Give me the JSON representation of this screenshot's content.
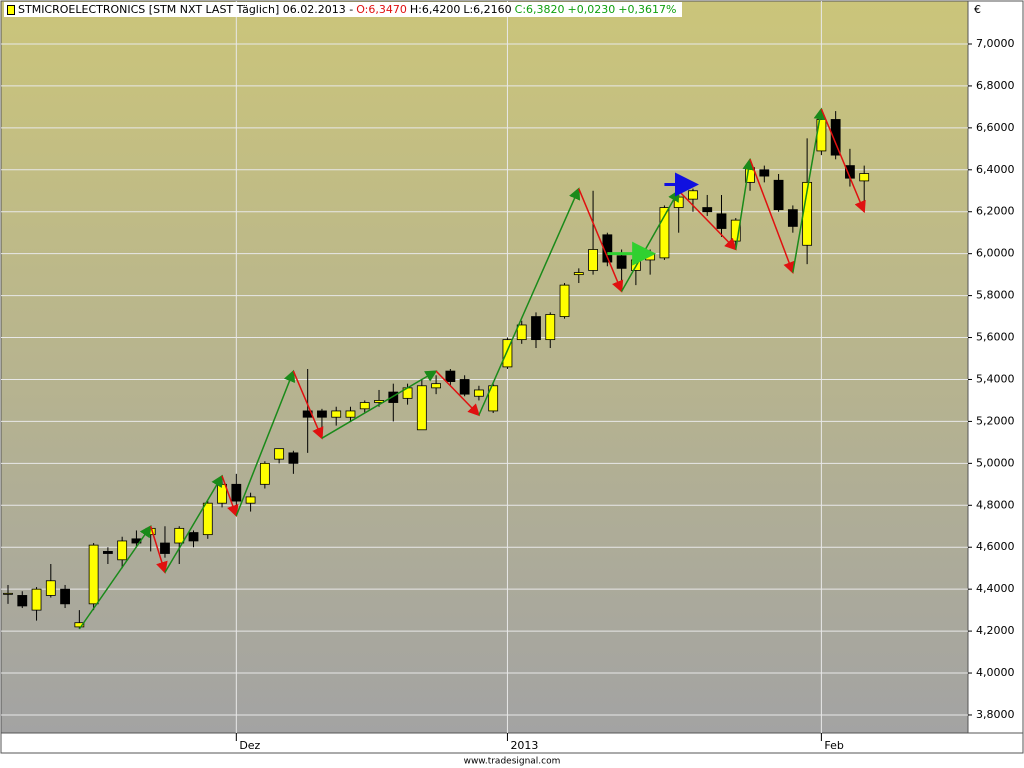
{
  "header": {
    "instrument": "STMICROELECTRONICS [STM NXT LAST Täglich] 06.02.2013 -",
    "open": "O:6,3470",
    "high": "H:6,4200",
    "low": "L:6,2160",
    "close": "C:6,3820",
    "change": "+0,0230",
    "change_pct": "+0,3617%"
  },
  "footer": "www.tradesignal.com",
  "chart_data": {
    "type": "candlestick",
    "y_label": "€",
    "categories": [
      null,
      null,
      null,
      null,
      null,
      null,
      null,
      null,
      null,
      null,
      null,
      null,
      null,
      null,
      null,
      null,
      "Dez",
      null,
      null,
      null,
      null,
      null,
      null,
      null,
      null,
      null,
      null,
      null,
      null,
      null,
      null,
      null,
      null,
      null,
      null,
      "2013",
      null,
      null,
      null,
      null,
      null,
      null,
      null,
      null,
      null,
      null,
      null,
      null,
      null,
      null,
      null,
      null,
      null,
      null,
      null,
      null,
      null,
      "Feb",
      null,
      null,
      null
    ],
    "open": [
      4.38,
      4.37,
      4.3,
      4.37,
      4.4,
      4.22,
      4.33,
      4.58,
      4.54,
      4.64,
      4.66,
      4.62,
      4.62,
      4.67,
      4.66,
      4.81,
      4.9,
      4.81,
      4.9,
      5.02,
      5.05,
      5.25,
      5.25,
      5.22,
      5.22,
      5.26,
      5.29,
      5.34,
      5.31,
      5.16,
      5.36,
      5.44,
      5.4,
      5.32,
      5.25,
      5.46,
      5.59,
      5.7,
      5.59,
      5.7,
      5.9,
      5.92,
      6.09,
      5.99,
      5.92,
      5.97,
      5.98,
      6.22,
      6.26,
      6.22,
      6.19,
      6.06,
      6.34,
      6.4,
      6.35,
      6.21,
      6.04,
      6.49,
      6.64,
      6.42,
      6.347
    ],
    "high": [
      4.42,
      4.39,
      4.41,
      4.52,
      4.42,
      4.3,
      4.62,
      4.6,
      4.65,
      4.68,
      4.7,
      4.7,
      4.7,
      4.68,
      4.82,
      4.93,
      4.95,
      4.86,
      5.01,
      5.07,
      5.06,
      5.45,
      5.26,
      5.27,
      5.27,
      5.3,
      5.35,
      5.38,
      5.38,
      5.4,
      5.42,
      5.45,
      5.42,
      5.37,
      5.38,
      5.6,
      5.68,
      5.72,
      5.72,
      5.86,
      5.93,
      6.3,
      6.1,
      6.02,
      6.0,
      6.02,
      6.23,
      6.28,
      6.31,
      6.28,
      6.28,
      6.17,
      6.45,
      6.42,
      6.38,
      6.23,
      6.55,
      6.68,
      6.68,
      6.5,
      6.42
    ],
    "low": [
      4.33,
      4.31,
      4.25,
      4.36,
      4.31,
      4.21,
      4.3,
      4.52,
      4.5,
      4.6,
      4.58,
      4.55,
      4.52,
      4.6,
      4.64,
      4.79,
      4.8,
      4.77,
      4.88,
      5.0,
      4.95,
      5.05,
      5.15,
      5.18,
      5.2,
      5.24,
      5.27,
      5.2,
      5.28,
      5.16,
      5.33,
      5.37,
      5.32,
      5.3,
      5.24,
      5.45,
      5.57,
      5.55,
      5.55,
      5.69,
      5.86,
      5.9,
      5.94,
      5.85,
      5.85,
      5.9,
      5.97,
      6.1,
      6.2,
      6.18,
      6.08,
      6.02,
      6.3,
      6.34,
      6.2,
      6.1,
      5.95,
      6.47,
      6.45,
      6.32,
      6.216
    ],
    "close": [
      4.38,
      4.32,
      4.4,
      4.44,
      4.33,
      4.24,
      4.61,
      4.57,
      4.63,
      4.62,
      4.69,
      4.57,
      4.69,
      4.63,
      4.81,
      4.9,
      4.82,
      4.84,
      5.0,
      5.07,
      5.0,
      5.22,
      5.22,
      5.25,
      5.25,
      5.29,
      5.3,
      5.29,
      5.36,
      5.37,
      5.38,
      5.39,
      5.33,
      5.35,
      5.37,
      5.59,
      5.66,
      5.59,
      5.71,
      5.85,
      5.91,
      6.02,
      5.96,
      5.93,
      5.97,
      6.0,
      6.22,
      6.27,
      6.3,
      6.2,
      6.12,
      6.16,
      6.41,
      6.37,
      6.21,
      6.13,
      6.34,
      6.64,
      6.47,
      6.36,
      6.382
    ],
    "up_color": "#ffff00",
    "down_color": "#000000",
    "zigzag": {
      "index": [
        5,
        10,
        11,
        15,
        16,
        20,
        22,
        30,
        33,
        40,
        43,
        47,
        51,
        52,
        55,
        57,
        60
      ],
      "values": [
        4.21,
        4.7,
        4.48,
        4.94,
        4.75,
        5.44,
        5.12,
        5.44,
        5.23,
        6.31,
        5.82,
        6.3,
        6.02,
        6.45,
        5.91,
        6.69,
        6.2
      ],
      "up_color": "#1a8a1a",
      "down_color": "#e01010"
    },
    "hlines": [
      {
        "from": 46,
        "to": 48,
        "value": 6.33,
        "color": "#1010e0"
      },
      {
        "from": 42,
        "to": 45,
        "value": 6.0,
        "color": "#30d030"
      }
    ],
    "ylim": [
      3.714,
      7.205
    ],
    "yticks": [
      {
        "value": 3.8,
        "label": "3,8000"
      },
      {
        "value": 4.0,
        "label": "4,0000"
      },
      {
        "value": 4.2,
        "label": "4,2000"
      },
      {
        "value": 4.4,
        "label": "4,4000"
      },
      {
        "value": 4.6,
        "label": "4,6000"
      },
      {
        "value": 4.8,
        "label": "4,8000"
      },
      {
        "value": 5.0,
        "label": "5,0000"
      },
      {
        "value": 5.2,
        "label": "5,2000"
      },
      {
        "value": 5.4,
        "label": "5,4000"
      },
      {
        "value": 5.6,
        "label": "5,6000"
      },
      {
        "value": 5.8,
        "label": "5,8000"
      },
      {
        "value": 6.0,
        "label": "6,0000"
      },
      {
        "value": 6.2,
        "label": "6,2000"
      },
      {
        "value": 6.4,
        "label": "6,4000"
      },
      {
        "value": 6.6,
        "label": "6,6000"
      },
      {
        "value": 6.8,
        "label": "6,8000"
      },
      {
        "value": 7.0,
        "label": "7,0000"
      }
    ],
    "grid": true
  }
}
